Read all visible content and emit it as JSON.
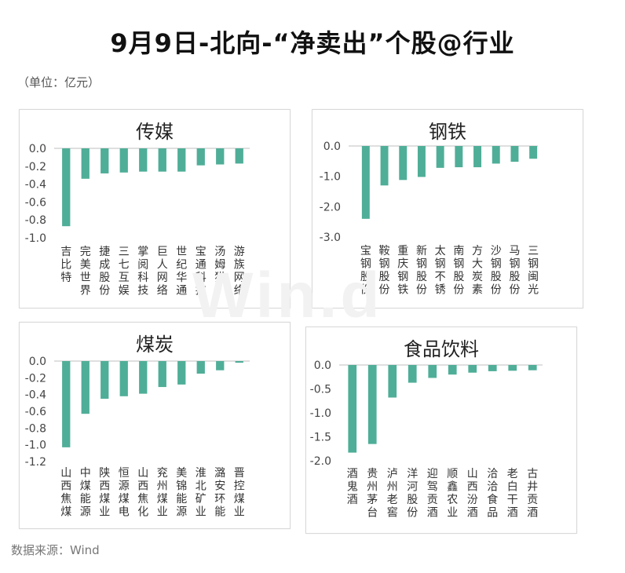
{
  "title": "9月9日-北向-“净卖出”个股@行业",
  "unit": "（单位：亿元）",
  "source": "数据来源：Wind",
  "watermark": "Win.d",
  "colors": {
    "bar": "#4fae98",
    "axis": "#bfbfbf",
    "text": "#333333"
  },
  "chart_data": [
    {
      "type": "bar",
      "title": "传媒",
      "categories": [
        "吉比特",
        "完美世界",
        "捷成股份",
        "三七互娱",
        "掌阅科技",
        "巨人网络",
        "世纪华通",
        "宝通科技",
        "汤姆猫",
        "游族网络"
      ],
      "values": [
        -0.87,
        -0.34,
        -0.28,
        -0.27,
        -0.26,
        -0.26,
        -0.26,
        -0.19,
        -0.18,
        -0.17
      ],
      "ylim": [
        -1.0,
        0.0
      ],
      "yticks": [
        "0.0",
        "-0.2",
        "-0.4",
        "-0.6",
        "-0.8",
        "-1.0"
      ],
      "tick_values": [
        0,
        -0.2,
        -0.4,
        -0.6,
        -0.8,
        -1.0
      ]
    },
    {
      "type": "bar",
      "title": "钢铁",
      "categories": [
        "宝钢股份",
        "鞍钢股份",
        "重庆钢铁",
        "新钢股份",
        "太钢不锈",
        "南钢股份",
        "方大炭素",
        "沙钢股份",
        "马钢股份",
        "三钢闽光"
      ],
      "values": [
        -2.4,
        -1.3,
        -1.12,
        -1.02,
        -0.72,
        -0.7,
        -0.7,
        -0.58,
        -0.52,
        -0.42
      ],
      "ylim": [
        -3.0,
        0.0
      ],
      "yticks": [
        "0.0",
        "-1.0",
        "-2.0",
        "-3.0"
      ],
      "tick_values": [
        0,
        -1.0,
        -2.0,
        -3.0
      ]
    },
    {
      "type": "bar",
      "title": "煤炭",
      "categories": [
        "山西焦煤",
        "中煤能源",
        "陕西煤业",
        "恒源煤电",
        "山西焦化",
        "兖州煤业",
        "美锦能源",
        "淮北矿业",
        "潞安环能",
        "晋控煤业"
      ],
      "values": [
        -1.03,
        -0.63,
        -0.45,
        -0.42,
        -0.39,
        -0.31,
        -0.28,
        -0.15,
        -0.11,
        -0.02
      ],
      "ylim": [
        -1.2,
        0.0
      ],
      "yticks": [
        "0.0",
        "-0.2",
        "-0.4",
        "-0.6",
        "-0.8",
        "-1.0",
        "-1.2"
      ],
      "tick_values": [
        0,
        -0.2,
        -0.4,
        -0.6,
        -0.8,
        -1.0,
        -1.2
      ]
    },
    {
      "type": "bar",
      "title": "食品饮料",
      "categories": [
        "酒鬼酒",
        "贵州茅台",
        "泸州老窖",
        "洋河股份",
        "迎驾贡酒",
        "顺鑫农业",
        "山西汾酒",
        "洽洽食品",
        "老白干酒",
        "古井贡酒"
      ],
      "values": [
        -1.83,
        -1.65,
        -0.68,
        -0.37,
        -0.27,
        -0.2,
        -0.16,
        -0.13,
        -0.12,
        -0.11
      ],
      "ylim": [
        -2.0,
        0.0
      ],
      "yticks": [
        "0.0",
        "-0.5",
        "-1.0",
        "-1.5",
        "-2.0"
      ],
      "tick_values": [
        0,
        -0.5,
        -1.0,
        -1.5,
        -2.0
      ]
    }
  ]
}
